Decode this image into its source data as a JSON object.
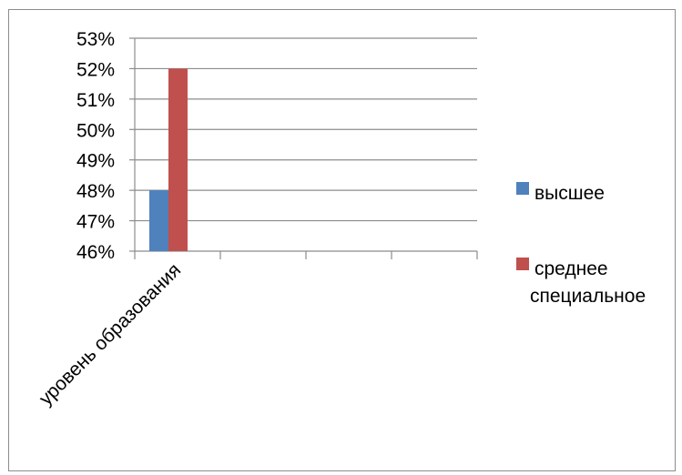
{
  "chart_data": {
    "type": "bar",
    "categories": [
      "уровень образования",
      "",
      "",
      ""
    ],
    "series": [
      {
        "name": "высшее",
        "values": [
          0.48,
          null,
          null,
          null
        ],
        "color": "#4f81bd"
      },
      {
        "name": "среднее специальное",
        "values": [
          0.52,
          null,
          null,
          null
        ],
        "color": "#c0504d"
      }
    ],
    "ylim": [
      0.46,
      0.53
    ],
    "ytick_labels": [
      "53%",
      "52%",
      "51%",
      "50%",
      "49%",
      "48%",
      "47%",
      "46%"
    ],
    "legend_lines": [
      [
        "высшее"
      ],
      [
        "среднее",
        "специальное"
      ]
    ],
    "legend_position": "right",
    "grid": true
  }
}
